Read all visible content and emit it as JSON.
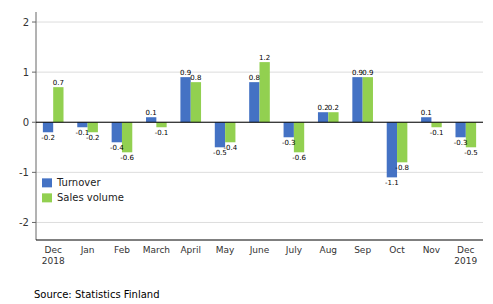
{
  "chart_data": {
    "type": "bar",
    "categories": [
      "Dec\n2018",
      "Jan",
      "Feb",
      "March",
      "April",
      "May",
      "June",
      "July",
      "Aug",
      "Sep",
      "Oct",
      "Nov",
      "Dec\n2019"
    ],
    "series": [
      {
        "name": "Turnover",
        "color": "#4472c4",
        "values": [
          -0.2,
          -0.1,
          -0.4,
          0.1,
          0.9,
          -0.5,
          0.8,
          -0.3,
          0.2,
          0.9,
          -1.1,
          0.1,
          -0.3
        ]
      },
      {
        "name": "Sales volume",
        "color": "#92d050",
        "values": [
          0.7,
          -0.2,
          -0.6,
          -0.1,
          0.8,
          -0.4,
          1.2,
          -0.6,
          0.2,
          0.9,
          -0.8,
          -0.1,
          -0.5
        ]
      }
    ],
    "ylim": [
      -2.35,
      2.2
    ],
    "yticks": [
      -2,
      -1,
      0,
      1,
      2
    ],
    "grid": true,
    "legend": "lower left",
    "data_labels": true,
    "annotations": [
      "Source: Statistics Finland"
    ]
  }
}
